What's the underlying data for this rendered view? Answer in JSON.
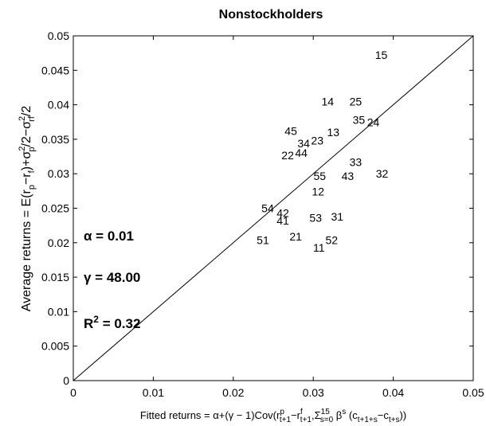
{
  "chart_data": {
    "type": "scatter",
    "title": "Nonstockholders",
    "xlabel": "Fitted returns = α+(γ − 1)Cov(r^p_{t+1}−r^f_{t+1},Σ^{15}_{s=0} β^s (c_{t+1+s}−c_{t+s}))",
    "ylabel": "Average returns = E(r_p−r_f)+σ_p²/2−σ_rf²/2",
    "xlim": [
      0,
      0.05
    ],
    "ylim": [
      0,
      0.05
    ],
    "xticks": [
      "0",
      "0.01",
      "0.02",
      "0.03",
      "0.04",
      "0.05"
    ],
    "yticks": [
      "0",
      "0.005",
      "0.01",
      "0.015",
      "0.02",
      "0.025",
      "0.03",
      "0.035",
      "0.04",
      "0.045",
      "0.05"
    ],
    "grid": false,
    "reference_line": "45-degree",
    "points": [
      {
        "label": "15",
        "x": 0.0385,
        "y": 0.0472
      },
      {
        "label": "14",
        "x": 0.0318,
        "y": 0.0405
      },
      {
        "label": "25",
        "x": 0.0353,
        "y": 0.0405
      },
      {
        "label": "35",
        "x": 0.0357,
        "y": 0.0378
      },
      {
        "label": "24",
        "x": 0.0375,
        "y": 0.0375
      },
      {
        "label": "45",
        "x": 0.0272,
        "y": 0.0362
      },
      {
        "label": "13",
        "x": 0.0325,
        "y": 0.036
      },
      {
        "label": "23",
        "x": 0.0305,
        "y": 0.0348
      },
      {
        "label": "34",
        "x": 0.0288,
        "y": 0.0344
      },
      {
        "label": "22",
        "x": 0.0268,
        "y": 0.0327
      },
      {
        "label": "44",
        "x": 0.0285,
        "y": 0.033
      },
      {
        "label": "33",
        "x": 0.0353,
        "y": 0.0317
      },
      {
        "label": "55",
        "x": 0.0308,
        "y": 0.0297
      },
      {
        "label": "43",
        "x": 0.0343,
        "y": 0.0297
      },
      {
        "label": "32",
        "x": 0.0386,
        "y": 0.03
      },
      {
        "label": "12",
        "x": 0.0306,
        "y": 0.0274
      },
      {
        "label": "54",
        "x": 0.0243,
        "y": 0.025
      },
      {
        "label": "42",
        "x": 0.0262,
        "y": 0.0243
      },
      {
        "label": "41",
        "x": 0.0262,
        "y": 0.0232
      },
      {
        "label": "53",
        "x": 0.0303,
        "y": 0.0236
      },
      {
        "label": "31",
        "x": 0.033,
        "y": 0.0238
      },
      {
        "label": "51",
        "x": 0.0237,
        "y": 0.0204
      },
      {
        "label": "21",
        "x": 0.0278,
        "y": 0.0209
      },
      {
        "label": "52",
        "x": 0.0323,
        "y": 0.0204
      },
      {
        "label": "11",
        "x": 0.0307,
        "y": 0.0193
      }
    ],
    "annotations": [
      "α = 0.01",
      "γ = 48.00",
      "R² = 0.32"
    ]
  },
  "labels": {
    "alpha": "α = 0.01",
    "gamma": "γ = 48.00",
    "r2_base": "R",
    "r2_sup": "2",
    "r2_value": " = 0.32"
  }
}
